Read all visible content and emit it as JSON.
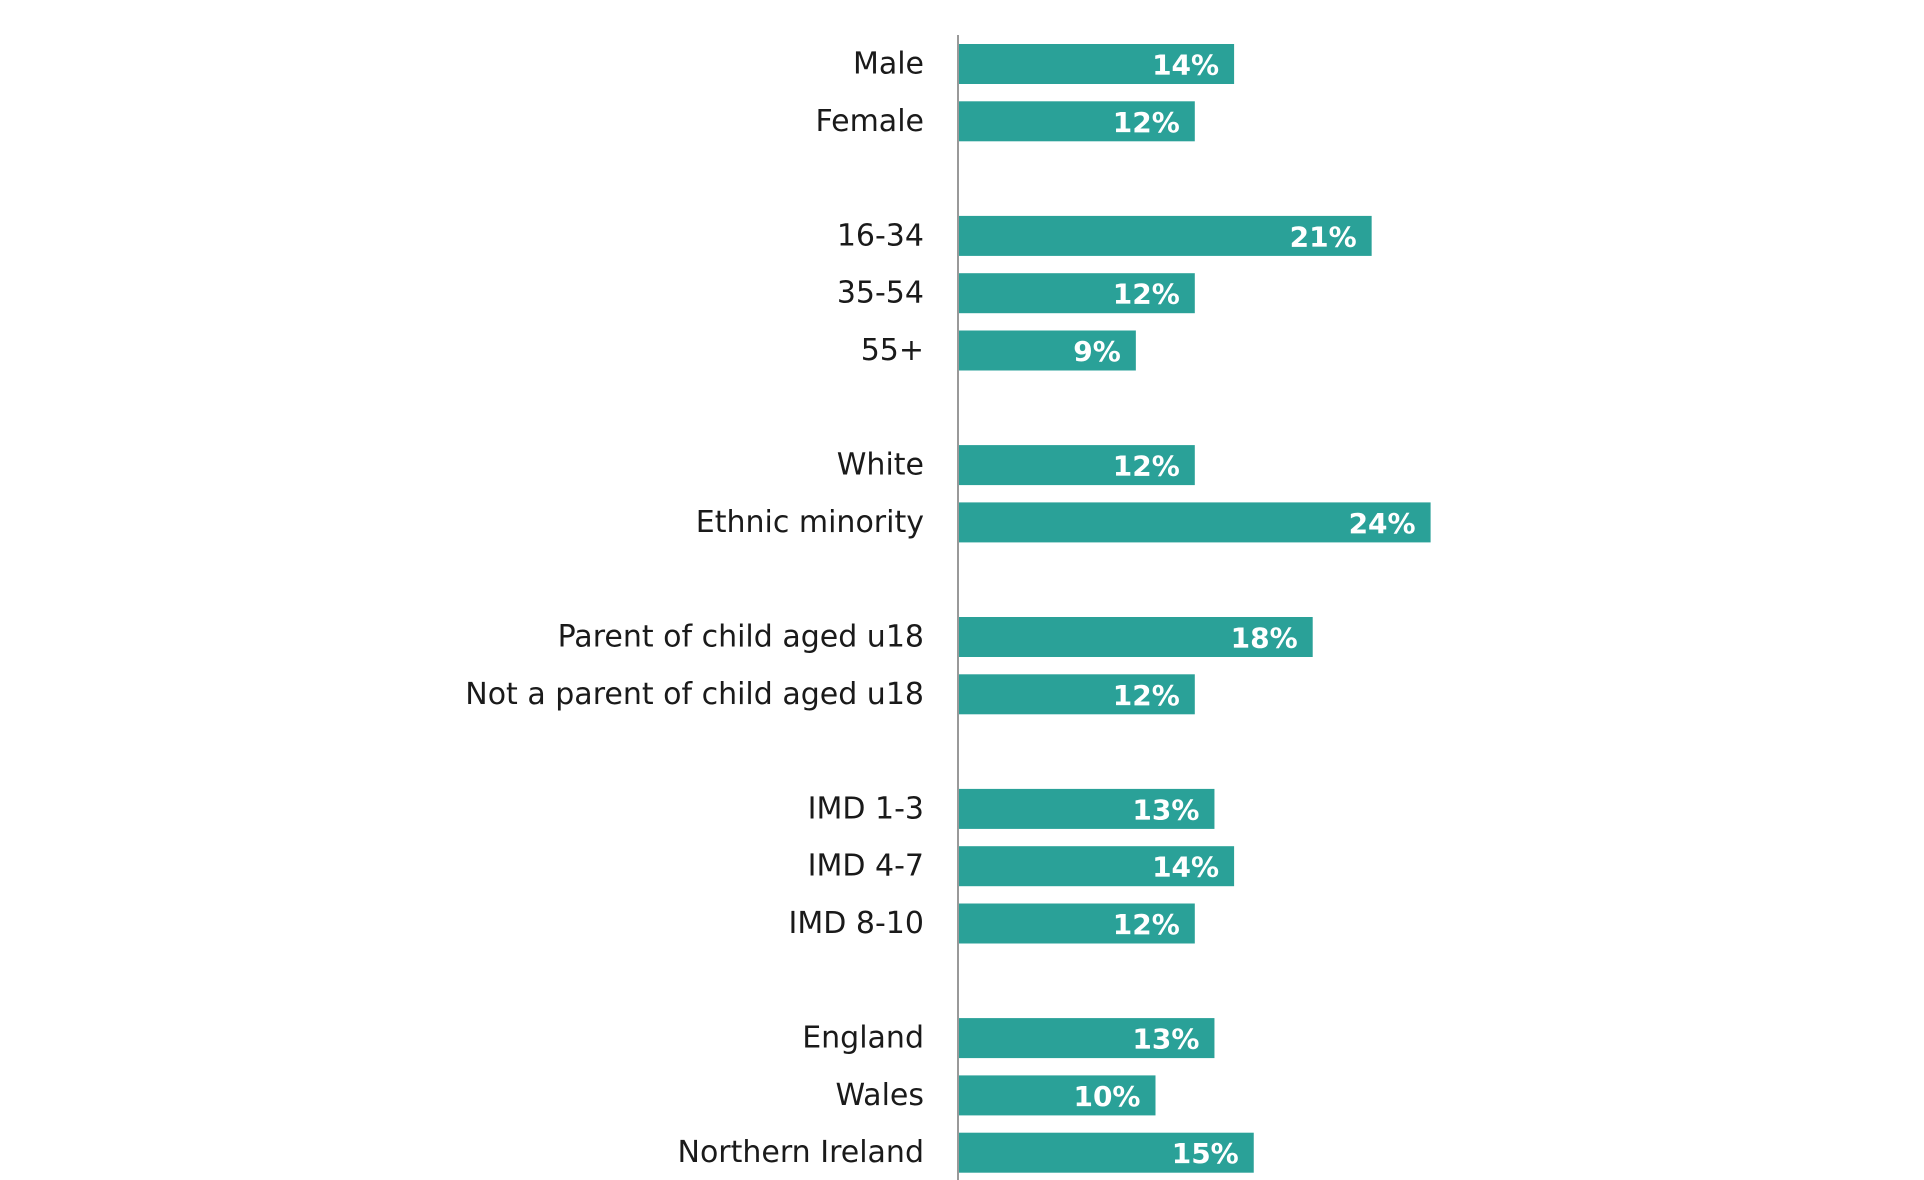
{
  "chart_data": {
    "type": "bar",
    "orientation": "horizontal",
    "bar_color": "#2aa198",
    "axis_color": "#999999",
    "value_suffix": "%",
    "xlim": [
      0,
      24
    ],
    "grid": false,
    "legend": "none",
    "groups": [
      {
        "items": [
          {
            "category": "Male",
            "value": 14,
            "label": "14%"
          },
          {
            "category": "Female",
            "value": 12,
            "label": "12%"
          }
        ]
      },
      {
        "items": [
          {
            "category": "16-34",
            "value": 21,
            "label": "21%"
          },
          {
            "category": "35-54",
            "value": 12,
            "label": "12%"
          },
          {
            "category": "55+",
            "value": 9,
            "label": "9%"
          }
        ]
      },
      {
        "items": [
          {
            "category": "White",
            "value": 12,
            "label": "12%"
          },
          {
            "category": "Ethnic minority",
            "value": 24,
            "label": "24%"
          }
        ]
      },
      {
        "items": [
          {
            "category": "Parent of child aged u18",
            "value": 18,
            "label": "18%"
          },
          {
            "category": "Not a parent of child aged u18",
            "value": 12,
            "label": "12%"
          }
        ]
      },
      {
        "items": [
          {
            "category": "IMD 1-3",
            "value": 13,
            "label": "13%"
          },
          {
            "category": "IMD 4-7",
            "value": 14,
            "label": "14%"
          },
          {
            "category": "IMD 8-10",
            "value": 12,
            "label": "12%"
          }
        ]
      },
      {
        "items": [
          {
            "category": "England",
            "value": 13,
            "label": "13%"
          },
          {
            "category": "Wales",
            "value": 10,
            "label": "10%"
          },
          {
            "category": "Northern Ireland",
            "value": 15,
            "label": "15%"
          }
        ]
      }
    ]
  }
}
